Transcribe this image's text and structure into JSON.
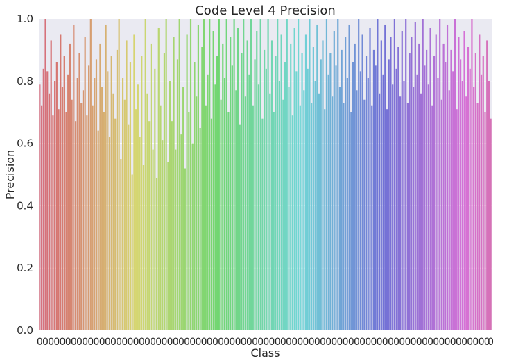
{
  "chart_data": {
    "type": "bar",
    "title": "Code Level 4 Precision",
    "xlabel": "Class",
    "ylabel": "Precision",
    "ylim": [
      0,
      1
    ],
    "yticks": [
      "0.0",
      "0.2",
      "0.4",
      "0.6",
      "0.8",
      "1.0"
    ],
    "ytick_values": [
      0,
      0.2,
      0.4,
      0.6,
      0.8,
      1.0
    ],
    "grid": true,
    "legend": "none",
    "category_tick_label": "0",
    "category_count": 240,
    "values": [
      0.79,
      0.72,
      0.84,
      1.0,
      0.83,
      0.76,
      0.93,
      0.69,
      0.8,
      0.86,
      0.71,
      0.95,
      0.78,
      0.88,
      0.7,
      0.82,
      0.92,
      0.74,
      0.98,
      0.67,
      0.81,
      0.89,
      0.73,
      0.77,
      0.94,
      0.69,
      0.85,
      1.0,
      0.72,
      0.81,
      0.87,
      0.64,
      0.92,
      0.78,
      0.7,
      0.98,
      0.83,
      0.62,
      0.88,
      0.76,
      0.68,
      0.9,
      1.0,
      0.55,
      0.81,
      0.74,
      0.93,
      0.66,
      0.86,
      0.5,
      0.95,
      0.71,
      0.79,
      0.62,
      0.88,
      0.53,
      1.0,
      0.76,
      0.67,
      0.92,
      0.58,
      0.84,
      0.49,
      0.97,
      0.72,
      0.61,
      0.89,
      1.0,
      0.54,
      0.8,
      0.67,
      0.94,
      0.58,
      0.87,
      1.0,
      0.63,
      0.78,
      0.52,
      0.95,
      0.7,
      1.0,
      0.6,
      0.86,
      0.75,
      0.98,
      0.65,
      0.91,
      1.0,
      0.72,
      0.82,
      1.0,
      0.68,
      0.96,
      0.79,
      0.88,
      1.0,
      0.74,
      0.92,
      0.81,
      1.0,
      0.7,
      0.94,
      0.85,
      1.0,
      0.77,
      0.97,
      0.66,
      0.89,
      1.0,
      0.75,
      0.93,
      0.82,
      1.0,
      0.72,
      0.87,
      0.96,
      0.79,
      1.0,
      0.68,
      0.9,
      0.84,
      1.0,
      0.76,
      0.93,
      0.7,
      0.88,
      1.0,
      0.8,
      0.95,
      0.74,
      0.86,
      1.0,
      0.78,
      0.92,
      0.69,
      0.97,
      0.83,
      1.0,
      0.72,
      0.89,
      0.77,
      0.95,
      0.84,
      1.0,
      0.73,
      0.91,
      0.8,
      0.98,
      0.76,
      0.87,
      0.93,
      0.71,
      1.0,
      0.82,
      0.89,
      0.75,
      0.96,
      0.85,
      1.0,
      0.78,
      0.9,
      0.73,
      0.94,
      0.81,
      0.98,
      0.7,
      0.86,
      0.92,
      0.77,
      1.0,
      0.83,
      0.95,
      0.74,
      0.88,
      0.81,
      0.97,
      0.72,
      0.9,
      0.85,
      1.0,
      0.76,
      0.93,
      0.82,
      0.98,
      0.71,
      0.87,
      0.94,
      0.79,
      1.0,
      0.84,
      0.91,
      0.75,
      0.96,
      0.8,
      1.0,
      0.73,
      0.89,
      0.94,
      0.78,
      0.99,
      0.82,
      0.92,
      0.76,
      1.0,
      0.85,
      0.9,
      0.79,
      0.97,
      0.72,
      0.88,
      0.95,
      0.81,
      1.0,
      0.74,
      0.92,
      0.86,
      0.98,
      0.77,
      0.9,
      0.83,
      1.0,
      0.71,
      0.94,
      0.87,
      0.8,
      0.96,
      0.75,
      0.91,
      0.84,
      1.0,
      0.78,
      0.89,
      0.73,
      0.95,
      0.82,
      0.88,
      0.7,
      0.93,
      0.8,
      0.68
    ]
  }
}
